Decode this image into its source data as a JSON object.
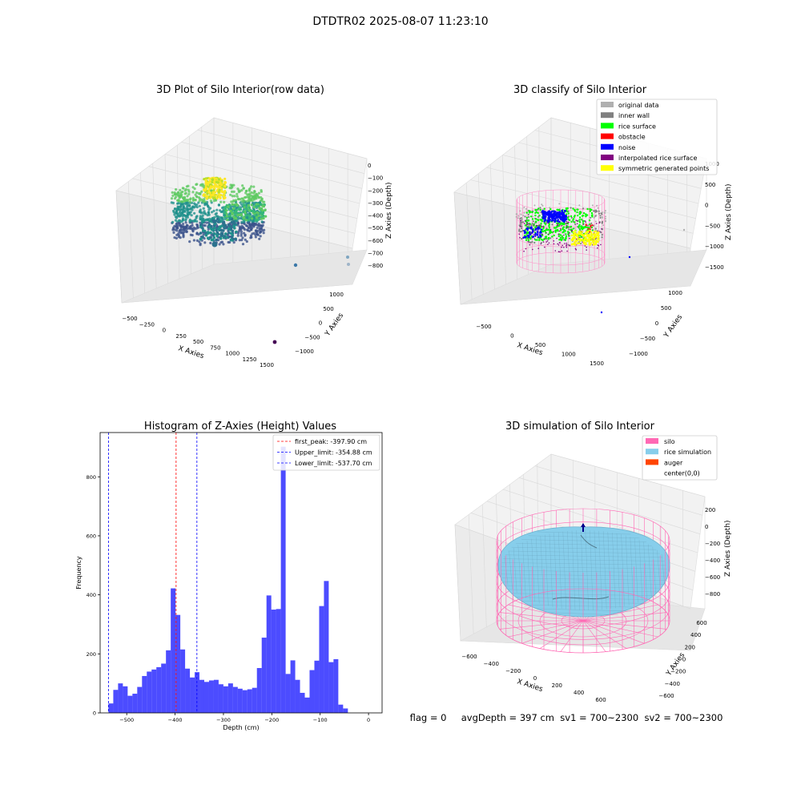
{
  "suptitle": "DTDTR02 2025-08-07 11:23:10",
  "panel_raw": {
    "title": "3D Plot of Silo Interior(row data)",
    "x_ticks": [
      "−500",
      "−250",
      "0",
      "250",
      "500",
      "750",
      "1000",
      "1250",
      "1500"
    ],
    "y_ticks": [
      "−1000",
      "−500",
      "0",
      "500",
      "1000"
    ],
    "z_ticks": [
      "0",
      "−100",
      "−200",
      "−300",
      "−400",
      "−500",
      "−600",
      "−700",
      "−800"
    ],
    "xlabel": "X Axies",
    "ylabel": "Y Axies",
    "zlabel": "Z Axies (Depth)",
    "colormap": [
      "#440154",
      "#3b528b",
      "#21918c",
      "#5ec962",
      "#fde725"
    ]
  },
  "panel_classify": {
    "title": "3D classify of Silo Interior",
    "x_ticks": [
      "−500",
      "0",
      "500",
      "1000",
      "1500"
    ],
    "y_ticks": [
      "−1000",
      "−500",
      "0",
      "500",
      "1000"
    ],
    "z_ticks": [
      "1000",
      "500",
      "0",
      "−500",
      "−1000",
      "−1500"
    ],
    "xlabel": "X Axies",
    "ylabel": "Y Axies",
    "zlabel": "Z Axies (Depth)",
    "legend": [
      {
        "label": "original data",
        "color": "#b0b0b0"
      },
      {
        "label": "inner wall",
        "color": "#808080"
      },
      {
        "label": "rice surface",
        "color": "#00ff00"
      },
      {
        "label": "obstacle",
        "color": "#ff0000"
      },
      {
        "label": "noise",
        "color": "#0000ff"
      },
      {
        "label": "interpolated rice surface",
        "color": "#800080"
      },
      {
        "label": "symmetric generated points",
        "color": "#ffff00"
      }
    ]
  },
  "panel_sim": {
    "title": "3D simulation of Silo Interior",
    "x_ticks": [
      "−600",
      "−400",
      "−200",
      "0",
      "200",
      "400",
      "600"
    ],
    "y_ticks": [
      "600",
      "400",
      "200",
      "0",
      "−200",
      "−400",
      "−600"
    ],
    "z_ticks": [
      "200",
      "0",
      "−200",
      "−400",
      "−600",
      "−800"
    ],
    "xlabel": "X Axies",
    "ylabel": "Y Axies",
    "zlabel": "Z Axies (Depth)",
    "legend": [
      {
        "label": "silo",
        "color": "#ff69b4"
      },
      {
        "label": "rice simulation",
        "color": "#87ceeb"
      },
      {
        "label": "auger",
        "color": "#ff4500"
      },
      {
        "label": "center(0,0)",
        "color": "#ffffff"
      }
    ]
  },
  "status_line": "flag = 0     avgDepth = 397 cm  sv1 = 700~2300  sv2 = 700~2300",
  "chart_data": {
    "type": "bar",
    "title": "Histogram of Z-Axies (Height) Values",
    "xlabel": "Depth (cm)",
    "ylabel": "Frequency",
    "bar_color": "#0000ff",
    "xlim": [
      -555,
      28
    ],
    "ylim": [
      0,
      950
    ],
    "x_ticks": [
      -500,
      -400,
      -300,
      -200,
      -100,
      0
    ],
    "x_tick_labels": [
      "−500",
      "−400",
      "−300",
      "−200",
      "−100",
      "0"
    ],
    "y_ticks": [
      0,
      200,
      400,
      600,
      800
    ],
    "y_tick_labels": [
      "0",
      "200",
      "400",
      "600",
      "800"
    ],
    "bin_start": -537.7,
    "bin_width": 9.9,
    "values": [
      32,
      78,
      100,
      90,
      58,
      65,
      88,
      125,
      140,
      147,
      155,
      167,
      212,
      422,
      332,
      215,
      150,
      120,
      138,
      112,
      105,
      110,
      112,
      97,
      90,
      100,
      88,
      82,
      77,
      80,
      85,
      152,
      255,
      398,
      350,
      352,
      902,
      132,
      178,
      112,
      68,
      52,
      145,
      177,
      362,
      447,
      172,
      182,
      28,
      15
    ],
    "vlines": [
      {
        "label": "first_peak: -397.90 cm",
        "value": -397.9,
        "color": "#ff0000"
      },
      {
        "label": "Upper_limit: -354.88 cm",
        "value": -354.88,
        "color": "#0000ff"
      },
      {
        "label": "Lower_limit: -537.70 cm",
        "value": -537.7,
        "color": "#0000ff"
      }
    ]
  }
}
